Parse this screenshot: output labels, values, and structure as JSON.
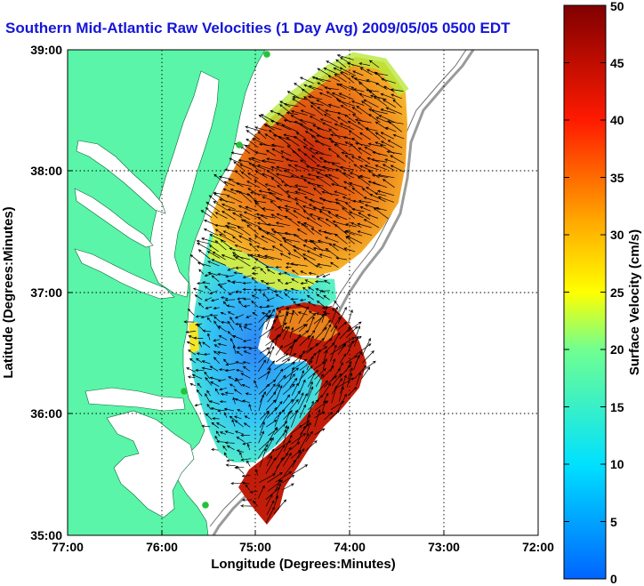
{
  "title": "Southern Mid-Atlantic Raw Velocities (1 Day Avg) 2009/05/05 0500 EDT",
  "x_axis": {
    "label": "Longitude (Degrees:Minutes)",
    "ticks": [
      "77:00",
      "76:00",
      "75:00",
      "74:00",
      "73:00",
      "72:00"
    ],
    "range": [
      -77,
      -72
    ]
  },
  "y_axis": {
    "label": "Latitude (Degrees:Minutes)",
    "ticks": [
      "35:00",
      "36:00",
      "37:00",
      "38:00",
      "39:00"
    ],
    "range": [
      35,
      39
    ]
  },
  "colorbar": {
    "label": "Surface Velocity (cm/s)",
    "min": 0,
    "max": 50,
    "ticks": [
      "0",
      "5",
      "10",
      "15",
      "20",
      "25",
      "30",
      "35",
      "40",
      "45",
      "50"
    ]
  },
  "colors": {
    "land": "#5af5a8",
    "water": "#ffffff",
    "title": "#1515d9",
    "grid": "#000000",
    "station": "#22c33a"
  },
  "grid_on": true
}
